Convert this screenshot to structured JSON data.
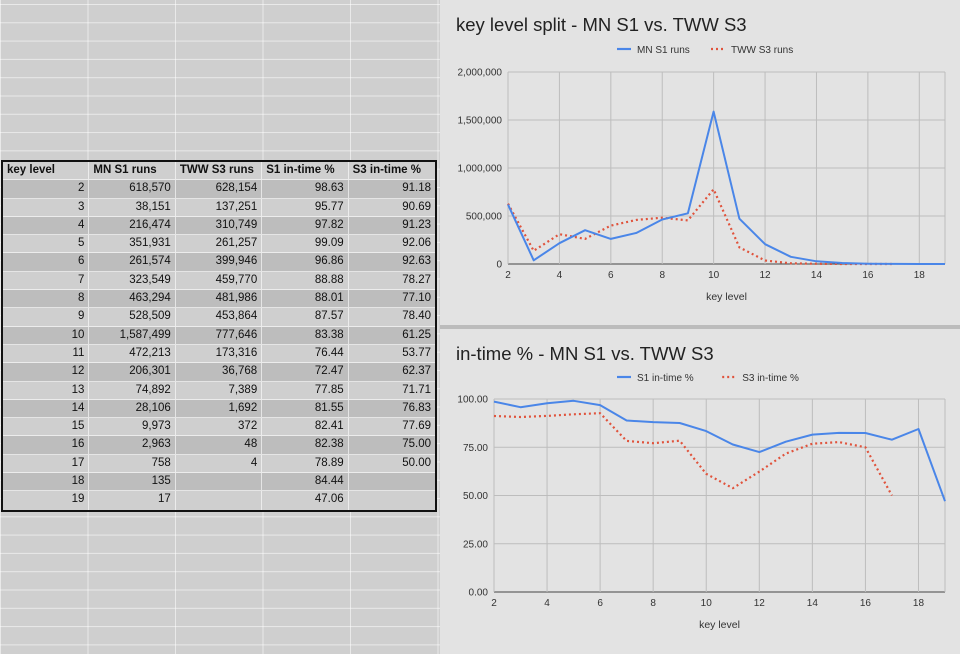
{
  "table": {
    "headers": [
      "key level",
      "MN S1 runs",
      "TWW S3 runs",
      "S1 in-time %",
      "S3 in-time %"
    ],
    "rows": [
      [
        "2",
        "618,570",
        "628,154",
        "98.63",
        "91.18"
      ],
      [
        "3",
        "38,151",
        "137,251",
        "95.77",
        "90.69"
      ],
      [
        "4",
        "216,474",
        "310,749",
        "97.82",
        "91.23"
      ],
      [
        "5",
        "351,931",
        "261,257",
        "99.09",
        "92.06"
      ],
      [
        "6",
        "261,574",
        "399,946",
        "96.86",
        "92.63"
      ],
      [
        "7",
        "323,549",
        "459,770",
        "88.88",
        "78.27"
      ],
      [
        "8",
        "463,294",
        "481,986",
        "88.01",
        "77.10"
      ],
      [
        "9",
        "528,509",
        "453,864",
        "87.57",
        "78.40"
      ],
      [
        "10",
        "1,587,499",
        "777,646",
        "83.38",
        "61.25"
      ],
      [
        "11",
        "472,213",
        "173,316",
        "76.44",
        "53.77"
      ],
      [
        "12",
        "206,301",
        "36,768",
        "72.47",
        "62.37"
      ],
      [
        "13",
        "74,892",
        "7,389",
        "77.85",
        "71.71"
      ],
      [
        "14",
        "28,106",
        "1,692",
        "81.55",
        "76.83"
      ],
      [
        "15",
        "9,973",
        "372",
        "82.41",
        "77.69"
      ],
      [
        "16",
        "2,963",
        "48",
        "82.38",
        "75.00"
      ],
      [
        "17",
        "758",
        "4",
        "78.89",
        "50.00"
      ],
      [
        "18",
        "135",
        "",
        "84.44",
        ""
      ],
      [
        "19",
        "17",
        "",
        "47.06",
        ""
      ]
    ]
  },
  "chart_data": [
    {
      "type": "line",
      "title": "key level split - MN S1 vs. TWW S3",
      "xlabel": "key level",
      "ylabel": "",
      "x": [
        2,
        3,
        4,
        5,
        6,
        7,
        8,
        9,
        10,
        11,
        12,
        13,
        14,
        15,
        16,
        17,
        18,
        19
      ],
      "xlim": [
        2,
        19
      ],
      "ylim": [
        0,
        2000000
      ],
      "xticks": [
        "2",
        "4",
        "6",
        "8",
        "10",
        "12",
        "14",
        "16",
        "18"
      ],
      "yticks": [
        "0",
        "500,000",
        "1,000,000",
        "1,500,000",
        "2,000,000"
      ],
      "legend_position": "top",
      "grid": true,
      "series": [
        {
          "name": "MN S1 runs",
          "color": "#4a86e8",
          "style": "solid",
          "values": [
            618570,
            38151,
            216474,
            351931,
            261574,
            323549,
            463294,
            528509,
            1587499,
            472213,
            206301,
            74892,
            28106,
            9973,
            2963,
            758,
            135,
            17
          ]
        },
        {
          "name": "TWW S3 runs",
          "color": "#e0533c",
          "style": "dotted",
          "values": [
            628154,
            137251,
            310749,
            261257,
            399946,
            459770,
            481986,
            453864,
            777646,
            173316,
            36768,
            7389,
            1692,
            372,
            48,
            4,
            null,
            null
          ]
        }
      ]
    },
    {
      "type": "line",
      "title": "in-time % - MN S1 vs. TWW S3",
      "xlabel": "key level",
      "ylabel": "",
      "x": [
        2,
        3,
        4,
        5,
        6,
        7,
        8,
        9,
        10,
        11,
        12,
        13,
        14,
        15,
        16,
        17,
        18,
        19
      ],
      "xlim": [
        2,
        19
      ],
      "ylim": [
        0,
        100
      ],
      "xticks": [
        "2",
        "4",
        "6",
        "8",
        "10",
        "12",
        "14",
        "16",
        "18"
      ],
      "yticks": [
        "0.00",
        "25.00",
        "50.00",
        "75.00",
        "100.00"
      ],
      "legend_position": "top",
      "grid": true,
      "series": [
        {
          "name": "S1 in-time %",
          "color": "#4a86e8",
          "style": "solid",
          "values": [
            98.63,
            95.77,
            97.82,
            99.09,
            96.86,
            88.88,
            88.01,
            87.57,
            83.38,
            76.44,
            72.47,
            77.85,
            81.55,
            82.41,
            82.38,
            78.89,
            84.44,
            47.06
          ]
        },
        {
          "name": "S3 in-time %",
          "color": "#e0533c",
          "style": "dotted",
          "values": [
            91.18,
            90.69,
            91.23,
            92.06,
            92.63,
            78.27,
            77.1,
            78.4,
            61.25,
            53.77,
            62.37,
            71.71,
            76.83,
            77.69,
            75.0,
            50.0,
            null,
            null
          ]
        }
      ]
    }
  ]
}
